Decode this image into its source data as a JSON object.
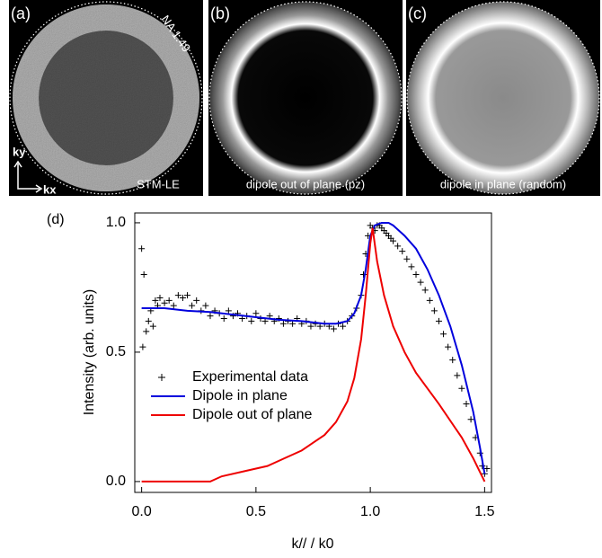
{
  "panels": [
    {
      "label": "(a)",
      "top_right": "NA 1.49",
      "axis_y": "ky",
      "axis_x": "kx",
      "caption": "STM-LE"
    },
    {
      "label": "(b)",
      "caption": "dipole out of plane (pz)"
    },
    {
      "label": "(c)",
      "caption": "dipole in plane (random)"
    }
  ],
  "chart_data": {
    "type": "line",
    "panel_label": "(d)",
    "x_label": "k// / k0",
    "y_label": "Intensity (arb. units)",
    "xlim": [
      -0.03,
      1.53
    ],
    "ylim": [
      -0.042,
      1.038
    ],
    "xticks": [
      {
        "value": 0,
        "label": "0.0"
      },
      {
        "value": 0.5,
        "label": "0.5"
      },
      {
        "value": 1,
        "label": "1.0"
      },
      {
        "value": 1.5,
        "label": "1.5"
      }
    ],
    "yticks": [
      {
        "value": 0,
        "label": "0.0"
      },
      {
        "value": 0.5,
        "label": "0.5"
      },
      {
        "value": 1,
        "label": "1.0"
      }
    ],
    "legend": "center-left",
    "series": [
      {
        "name": "Experimental data",
        "color": "#000000",
        "marker": "+",
        "x": [
          0.0,
          0.005,
          0.01,
          0.02,
          0.03,
          0.04,
          0.05,
          0.06,
          0.07,
          0.08,
          0.1,
          0.12,
          0.14,
          0.16,
          0.18,
          0.2,
          0.22,
          0.24,
          0.26,
          0.28,
          0.3,
          0.32,
          0.34,
          0.36,
          0.38,
          0.4,
          0.42,
          0.44,
          0.46,
          0.48,
          0.5,
          0.52,
          0.54,
          0.56,
          0.58,
          0.6,
          0.62,
          0.64,
          0.66,
          0.68,
          0.7,
          0.72,
          0.74,
          0.76,
          0.78,
          0.8,
          0.82,
          0.84,
          0.86,
          0.88,
          0.9,
          0.92,
          0.94,
          0.96,
          0.97,
          0.98,
          0.99,
          1.0,
          1.01,
          1.02,
          1.03,
          1.04,
          1.05,
          1.06,
          1.07,
          1.08,
          1.09,
          1.1,
          1.12,
          1.14,
          1.16,
          1.18,
          1.2,
          1.22,
          1.24,
          1.26,
          1.28,
          1.3,
          1.32,
          1.34,
          1.36,
          1.38,
          1.4,
          1.42,
          1.44,
          1.46,
          1.48,
          1.49,
          1.5,
          1.51
        ],
        "values": [
          0.9,
          0.52,
          0.8,
          0.58,
          0.62,
          0.66,
          0.6,
          0.7,
          0.68,
          0.71,
          0.69,
          0.7,
          0.68,
          0.72,
          0.71,
          0.72,
          0.68,
          0.7,
          0.66,
          0.68,
          0.64,
          0.66,
          0.65,
          0.63,
          0.66,
          0.64,
          0.65,
          0.63,
          0.64,
          0.62,
          0.65,
          0.63,
          0.62,
          0.64,
          0.62,
          0.63,
          0.61,
          0.62,
          0.61,
          0.63,
          0.61,
          0.62,
          0.6,
          0.61,
          0.6,
          0.61,
          0.6,
          0.59,
          0.61,
          0.6,
          0.62,
          0.64,
          0.67,
          0.72,
          0.8,
          0.88,
          0.95,
          0.99,
          0.98,
          0.97,
          0.99,
          0.99,
          0.98,
          0.97,
          0.96,
          0.95,
          0.94,
          0.93,
          0.91,
          0.89,
          0.86,
          0.83,
          0.8,
          0.77,
          0.74,
          0.7,
          0.66,
          0.62,
          0.57,
          0.52,
          0.47,
          0.41,
          0.36,
          0.3,
          0.24,
          0.17,
          0.11,
          0.06,
          0.03,
          0.05
        ]
      },
      {
        "name": "Dipole in plane",
        "color": "#0000dd",
        "x": [
          0,
          0.1,
          0.2,
          0.3,
          0.4,
          0.5,
          0.6,
          0.7,
          0.8,
          0.85,
          0.9,
          0.93,
          0.96,
          0.98,
          1.0,
          1.02,
          1.05,
          1.08,
          1.1,
          1.15,
          1.2,
          1.25,
          1.3,
          1.35,
          1.4,
          1.45,
          1.48,
          1.5
        ],
        "values": [
          0.67,
          0.67,
          0.66,
          0.655,
          0.645,
          0.635,
          0.625,
          0.62,
          0.61,
          0.61,
          0.62,
          0.65,
          0.72,
          0.82,
          0.95,
          0.99,
          1.0,
          1.0,
          0.99,
          0.95,
          0.9,
          0.82,
          0.72,
          0.6,
          0.45,
          0.27,
          0.13,
          0.03
        ]
      },
      {
        "name": "Dipole out of plane",
        "color": "#ee0000",
        "x": [
          0,
          0.3,
          0.35,
          0.45,
          0.5,
          0.55,
          0.6,
          0.65,
          0.7,
          0.75,
          0.8,
          0.85,
          0.9,
          0.93,
          0.96,
          0.98,
          1.0,
          1.01,
          1.03,
          1.06,
          1.1,
          1.15,
          1.2,
          1.3,
          1.4,
          1.45,
          1.5
        ],
        "values": [
          0,
          0,
          0.02,
          0.04,
          0.05,
          0.06,
          0.08,
          0.1,
          0.12,
          0.15,
          0.18,
          0.23,
          0.31,
          0.4,
          0.55,
          0.72,
          0.92,
          0.98,
          0.85,
          0.72,
          0.6,
          0.5,
          0.42,
          0.3,
          0.17,
          0.09,
          0.0
        ]
      }
    ]
  }
}
